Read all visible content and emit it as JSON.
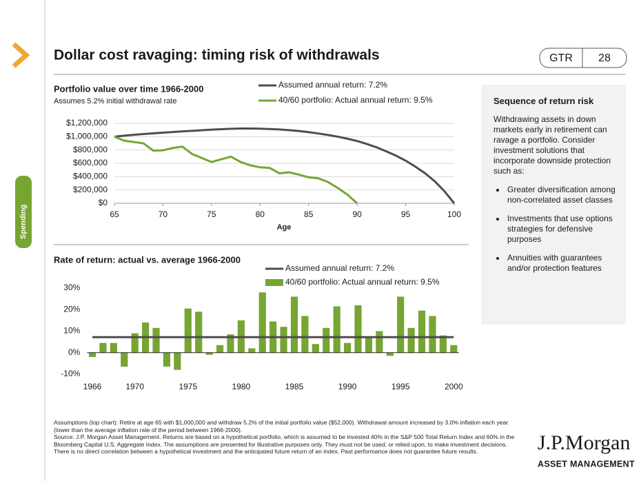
{
  "header": {
    "title": "Dollar cost ravaging: timing risk of withdrawals",
    "badge": "GTR",
    "page": "28",
    "tab": "Spending"
  },
  "chart_data": [
    {
      "type": "line",
      "title": "Portfolio value over time 1966-2000",
      "subtitle": "Assumes 5.2% initial withdrawal rate",
      "x_label": "Age",
      "x": [
        65,
        66,
        67,
        68,
        69,
        70,
        71,
        72,
        73,
        74,
        75,
        76,
        77,
        78,
        79,
        80,
        81,
        82,
        83,
        84,
        85,
        86,
        87,
        88,
        89,
        90,
        91,
        92,
        93,
        94,
        95,
        96,
        97,
        98,
        99,
        100
      ],
      "series": [
        {
          "name": "Assumed annual return: 7.2%",
          "color": "#4d4d4d",
          "values": [
            1000000,
            1015000,
            1028000,
            1040000,
            1050000,
            1060000,
            1070000,
            1080000,
            1088000,
            1097000,
            1105000,
            1112000,
            1118000,
            1122000,
            1122000,
            1120000,
            1115000,
            1108000,
            1098000,
            1085000,
            1068000,
            1048000,
            1025000,
            1000000,
            970000,
            935000,
            890000,
            840000,
            780000,
            715000,
            640000,
            550000,
            450000,
            330000,
            180000,
            0
          ]
        },
        {
          "name": "40/60 portfolio: Actual annual return: 9.5%",
          "color": "#76a532",
          "values": [
            1000000,
            940000,
            920000,
            900000,
            790000,
            795000,
            830000,
            850000,
            740000,
            680000,
            620000,
            660000,
            700000,
            620000,
            570000,
            540000,
            530000,
            450000,
            465000,
            430000,
            390000,
            375000,
            320000,
            230000,
            130000,
            0,
            null,
            null,
            null,
            null,
            null,
            null,
            null,
            null,
            null,
            null
          ]
        }
      ],
      "xlim": [
        65,
        100
      ],
      "xticks": [
        65,
        70,
        75,
        80,
        85,
        90,
        95,
        100
      ],
      "ylim": [
        0,
        1200000
      ],
      "yticks": [
        {
          "value": 0,
          "label": "$0"
        },
        {
          "value": 200000,
          "label": "$200,000"
        },
        {
          "value": 400000,
          "label": "$400,000"
        },
        {
          "value": 600000,
          "label": "$600,000"
        },
        {
          "value": 800000,
          "label": "$800,000"
        },
        {
          "value": 1000000,
          "label": "$1,000,000"
        },
        {
          "value": 1200000,
          "label": "$1,200,000"
        }
      ],
      "grid": true
    },
    {
      "type": "bar",
      "title": "Rate of return: actual vs. average 1966-2000",
      "categories": [
        "1966",
        null,
        null,
        null,
        "1970",
        null,
        null,
        null,
        null,
        "1975",
        null,
        null,
        null,
        null,
        "1980",
        null,
        null,
        null,
        null,
        "1985",
        null,
        null,
        null,
        null,
        "1990",
        null,
        null,
        null,
        null,
        "1995",
        null,
        null,
        null,
        null,
        "2000"
      ],
      "series": [
        {
          "name": "Assumed annual return: 7.2%",
          "color": "#4d4d4d",
          "type": "line",
          "values": [
            7.2,
            7.2,
            7.2,
            7.2,
            7.2,
            7.2,
            7.2,
            7.2,
            7.2,
            7.2,
            7.2,
            7.2,
            7.2,
            7.2,
            7.2,
            7.2,
            7.2,
            7.2,
            7.2,
            7.2,
            7.2,
            7.2,
            7.2,
            7.2,
            7.2,
            7.2,
            7.2,
            7.2,
            7.2,
            7.2,
            7.2,
            7.2,
            7.2,
            7.2,
            7.2
          ]
        },
        {
          "name": "40/60 portfolio: Actual annual return: 9.5%",
          "color": "#76a532",
          "type": "bar",
          "values": [
            -2,
            4.5,
            4.5,
            -6.5,
            9,
            14,
            11.5,
            -6.5,
            -8,
            20.5,
            19,
            -1,
            3.5,
            8.5,
            15,
            2,
            28,
            14.5,
            12,
            26,
            17,
            4,
            11.5,
            21.5,
            4.5,
            22,
            7.5,
            10,
            -1.5,
            26,
            11.5,
            19.5,
            17,
            8,
            3.5
          ]
        }
      ],
      "ylim": [
        -10,
        30
      ],
      "yticks": [
        {
          "value": -10,
          "label": "-10%"
        },
        {
          "value": 0,
          "label": "0%"
        },
        {
          "value": 10,
          "label": "10%"
        },
        {
          "value": 20,
          "label": "20%"
        },
        {
          "value": 30,
          "label": "30%"
        }
      ],
      "grid": false
    }
  ],
  "sidebar": {
    "title": "Sequence of return risk",
    "text": "Withdrawing assets in down markets early in retirement can ravage a portfolio. Consider investment solutions that incorporate downside protection such as:",
    "bullets": [
      "Greater diversification among non-correlated asset classes",
      "Investments that use options strategies for defensive purposes",
      "Annuities with guarantees and/or protection features"
    ]
  },
  "footnotes": [
    "Assumptions (top chart): Retire at age 65 with $1,000,000 and withdraw 5.2% of the initial portfolio value ($52,000). Withdrawal amount increased by 3.0% inflation each year (lower than the average inflation rate of the period between 1966-2000).",
    "Source: J.P. Morgan Asset Management. Returns are based on a hypothetical portfolio, which is assumed to be invested 40% in the S&P 500 Total Return Index and 60% in the Bloomberg Capital U.S. Aggregate Index. The assumptions are presented for illustrative purposes only. They must not be used, or relied upon, to make investment decisions. There is no direct correlation between a hypothetical investment and the anticipated future return of an index. Past performance does not guarantee future results."
  ],
  "logo": {
    "name": "J.P.Morgan",
    "tagline": "ASSET MANAGEMENT"
  }
}
